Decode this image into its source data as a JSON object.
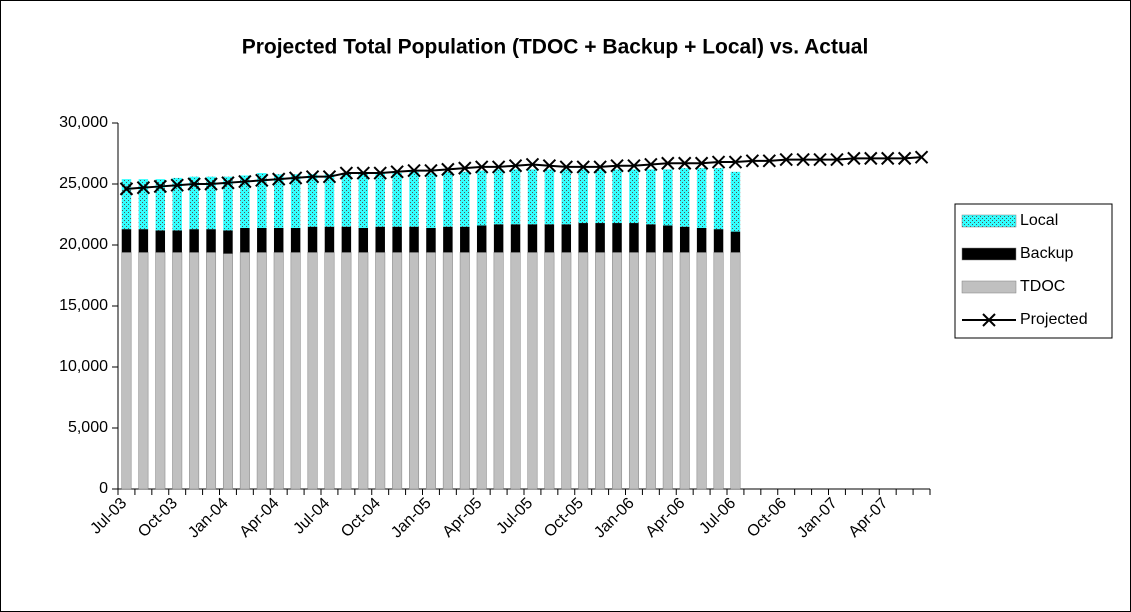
{
  "chart_data": {
    "type": "bar",
    "title": "Projected Total Population (TDOC + Backup + Local) vs. Actual",
    "categories": [
      "Jul-03",
      null,
      null,
      "Oct-03",
      null,
      null,
      "Jan-04",
      null,
      null,
      "Apr-04",
      null,
      null,
      "Jul-04",
      null,
      null,
      "Oct-04",
      null,
      null,
      "Jan-05",
      null,
      null,
      "Apr-05",
      null,
      null,
      "Jul-05",
      null,
      null,
      "Oct-05",
      null,
      null,
      "Jan-06",
      null,
      null,
      "Apr-06",
      null,
      null,
      "Jul-06",
      null,
      null,
      "Oct-06",
      null,
      null,
      "Jan-07",
      null,
      null,
      "Apr-07",
      null,
      null
    ],
    "series": [
      {
        "name": "TDOC",
        "color": "#c0c0c0",
        "values": [
          19400,
          19400,
          19400,
          19400,
          19400,
          19400,
          19300,
          19400,
          19400,
          19400,
          19400,
          19400,
          19400,
          19400,
          19400,
          19400,
          19400,
          19400,
          19400,
          19400,
          19400,
          19400,
          19400,
          19400,
          19400,
          19400,
          19400,
          19400,
          19400,
          19400,
          19400,
          19400,
          19400,
          19400,
          19400,
          19400,
          19400,
          null,
          null,
          null,
          null,
          null,
          null,
          null,
          null,
          null,
          null,
          null
        ]
      },
      {
        "name": "Backup",
        "color": "#000000",
        "values": [
          1900,
          1900,
          1800,
          1800,
          1900,
          1900,
          1900,
          2000,
          2000,
          2000,
          2000,
          2100,
          2100,
          2100,
          2000,
          2100,
          2100,
          2100,
          2000,
          2100,
          2100,
          2200,
          2300,
          2300,
          2300,
          2300,
          2300,
          2400,
          2400,
          2400,
          2400,
          2300,
          2200,
          2100,
          2000,
          1900,
          1700,
          null,
          null,
          null,
          null,
          null,
          null,
          null,
          null,
          null,
          null,
          null
        ]
      },
      {
        "name": "Local",
        "color": "#33ffff",
        "values": [
          4100,
          4100,
          4200,
          4300,
          4300,
          4300,
          4400,
          4300,
          4500,
          4400,
          4400,
          4300,
          4300,
          4400,
          4500,
          4400,
          4400,
          4500,
          4500,
          4500,
          4500,
          4500,
          4500,
          4500,
          4500,
          4500,
          4500,
          4400,
          4400,
          4400,
          4400,
          4500,
          4600,
          4800,
          4900,
          5000,
          4900,
          null,
          null,
          null,
          null,
          null,
          null,
          null,
          null,
          null,
          null,
          null
        ]
      },
      {
        "name": "Projected",
        "type": "line",
        "color": "#000000",
        "values": [
          24600,
          24700,
          24800,
          24900,
          25000,
          25000,
          25100,
          25200,
          25300,
          25400,
          25500,
          25600,
          25600,
          25900,
          25900,
          25900,
          26000,
          26100,
          26100,
          26200,
          26300,
          26400,
          26400,
          26500,
          26600,
          26500,
          26400,
          26400,
          26400,
          26500,
          26500,
          26600,
          26700,
          26700,
          26700,
          26800,
          26800,
          26900,
          26900,
          27000,
          27000,
          27000,
          27000,
          27100,
          27100,
          27100,
          27100,
          27200
        ]
      }
    ],
    "stacked": true,
    "ylim": [
      0,
      30000
    ],
    "yticks": [
      0,
      {
        "value": 5000,
        "label": "5,000"
      },
      {
        "value": 10000,
        "label": "10,000"
      },
      {
        "value": 15000,
        "label": "15,000"
      },
      {
        "value": 20000,
        "label": "20,000"
      },
      {
        "value": 25000,
        "label": "25,000"
      },
      {
        "value": 30000,
        "label": "30,000"
      }
    ],
    "legend": "right"
  }
}
